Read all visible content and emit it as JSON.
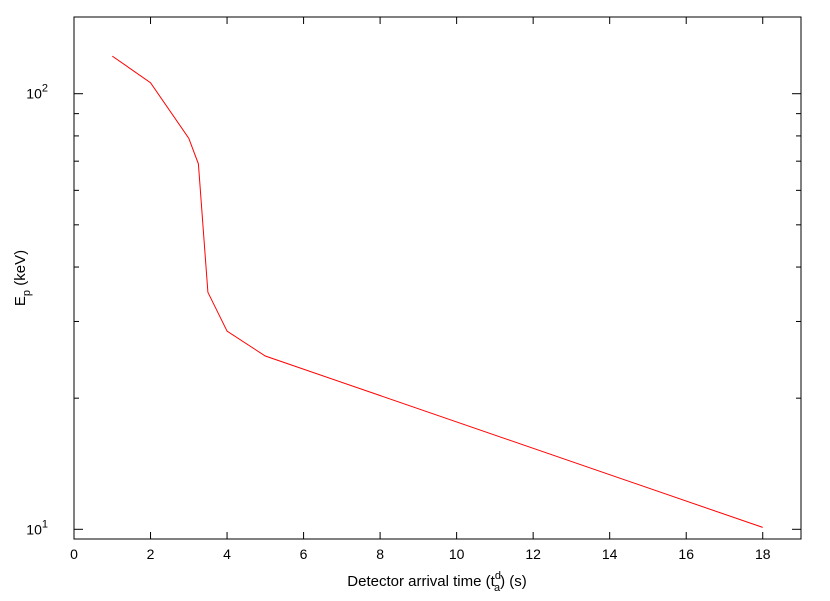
{
  "chart_data": {
    "type": "line",
    "title": "",
    "xlabel": {
      "text": "Detector arrival time (t",
      "sup": "d",
      "sub": "a",
      "tail": ") (s)"
    },
    "ylabel": {
      "text": "E",
      "sub": "p",
      "tail": " (keV)"
    },
    "xlim": [
      0,
      19
    ],
    "ylim": [
      9.5,
      150
    ],
    "yscale": "log",
    "xticks": [
      0,
      2,
      4,
      6,
      8,
      10,
      12,
      14,
      16,
      18
    ],
    "xtick_labels": [
      "0",
      "2",
      "4",
      "6",
      "8",
      "10",
      "12",
      "14",
      "16",
      "18"
    ],
    "yticks_major": [
      {
        "value": 10,
        "base": "10",
        "exp": "1"
      },
      {
        "value": 100,
        "base": "10",
        "exp": "2"
      }
    ],
    "yticks_minor": [
      20,
      30,
      40,
      50,
      60,
      70,
      80,
      90
    ],
    "grid": false,
    "series": [
      {
        "color": "#ff0000",
        "x": [
          1.0,
          2.0,
          3.0,
          3.25,
          3.5,
          4.0,
          5.0,
          18.0
        ],
        "y": [
          122,
          106,
          79,
          69,
          35,
          28.5,
          25,
          10.1
        ]
      }
    ]
  }
}
